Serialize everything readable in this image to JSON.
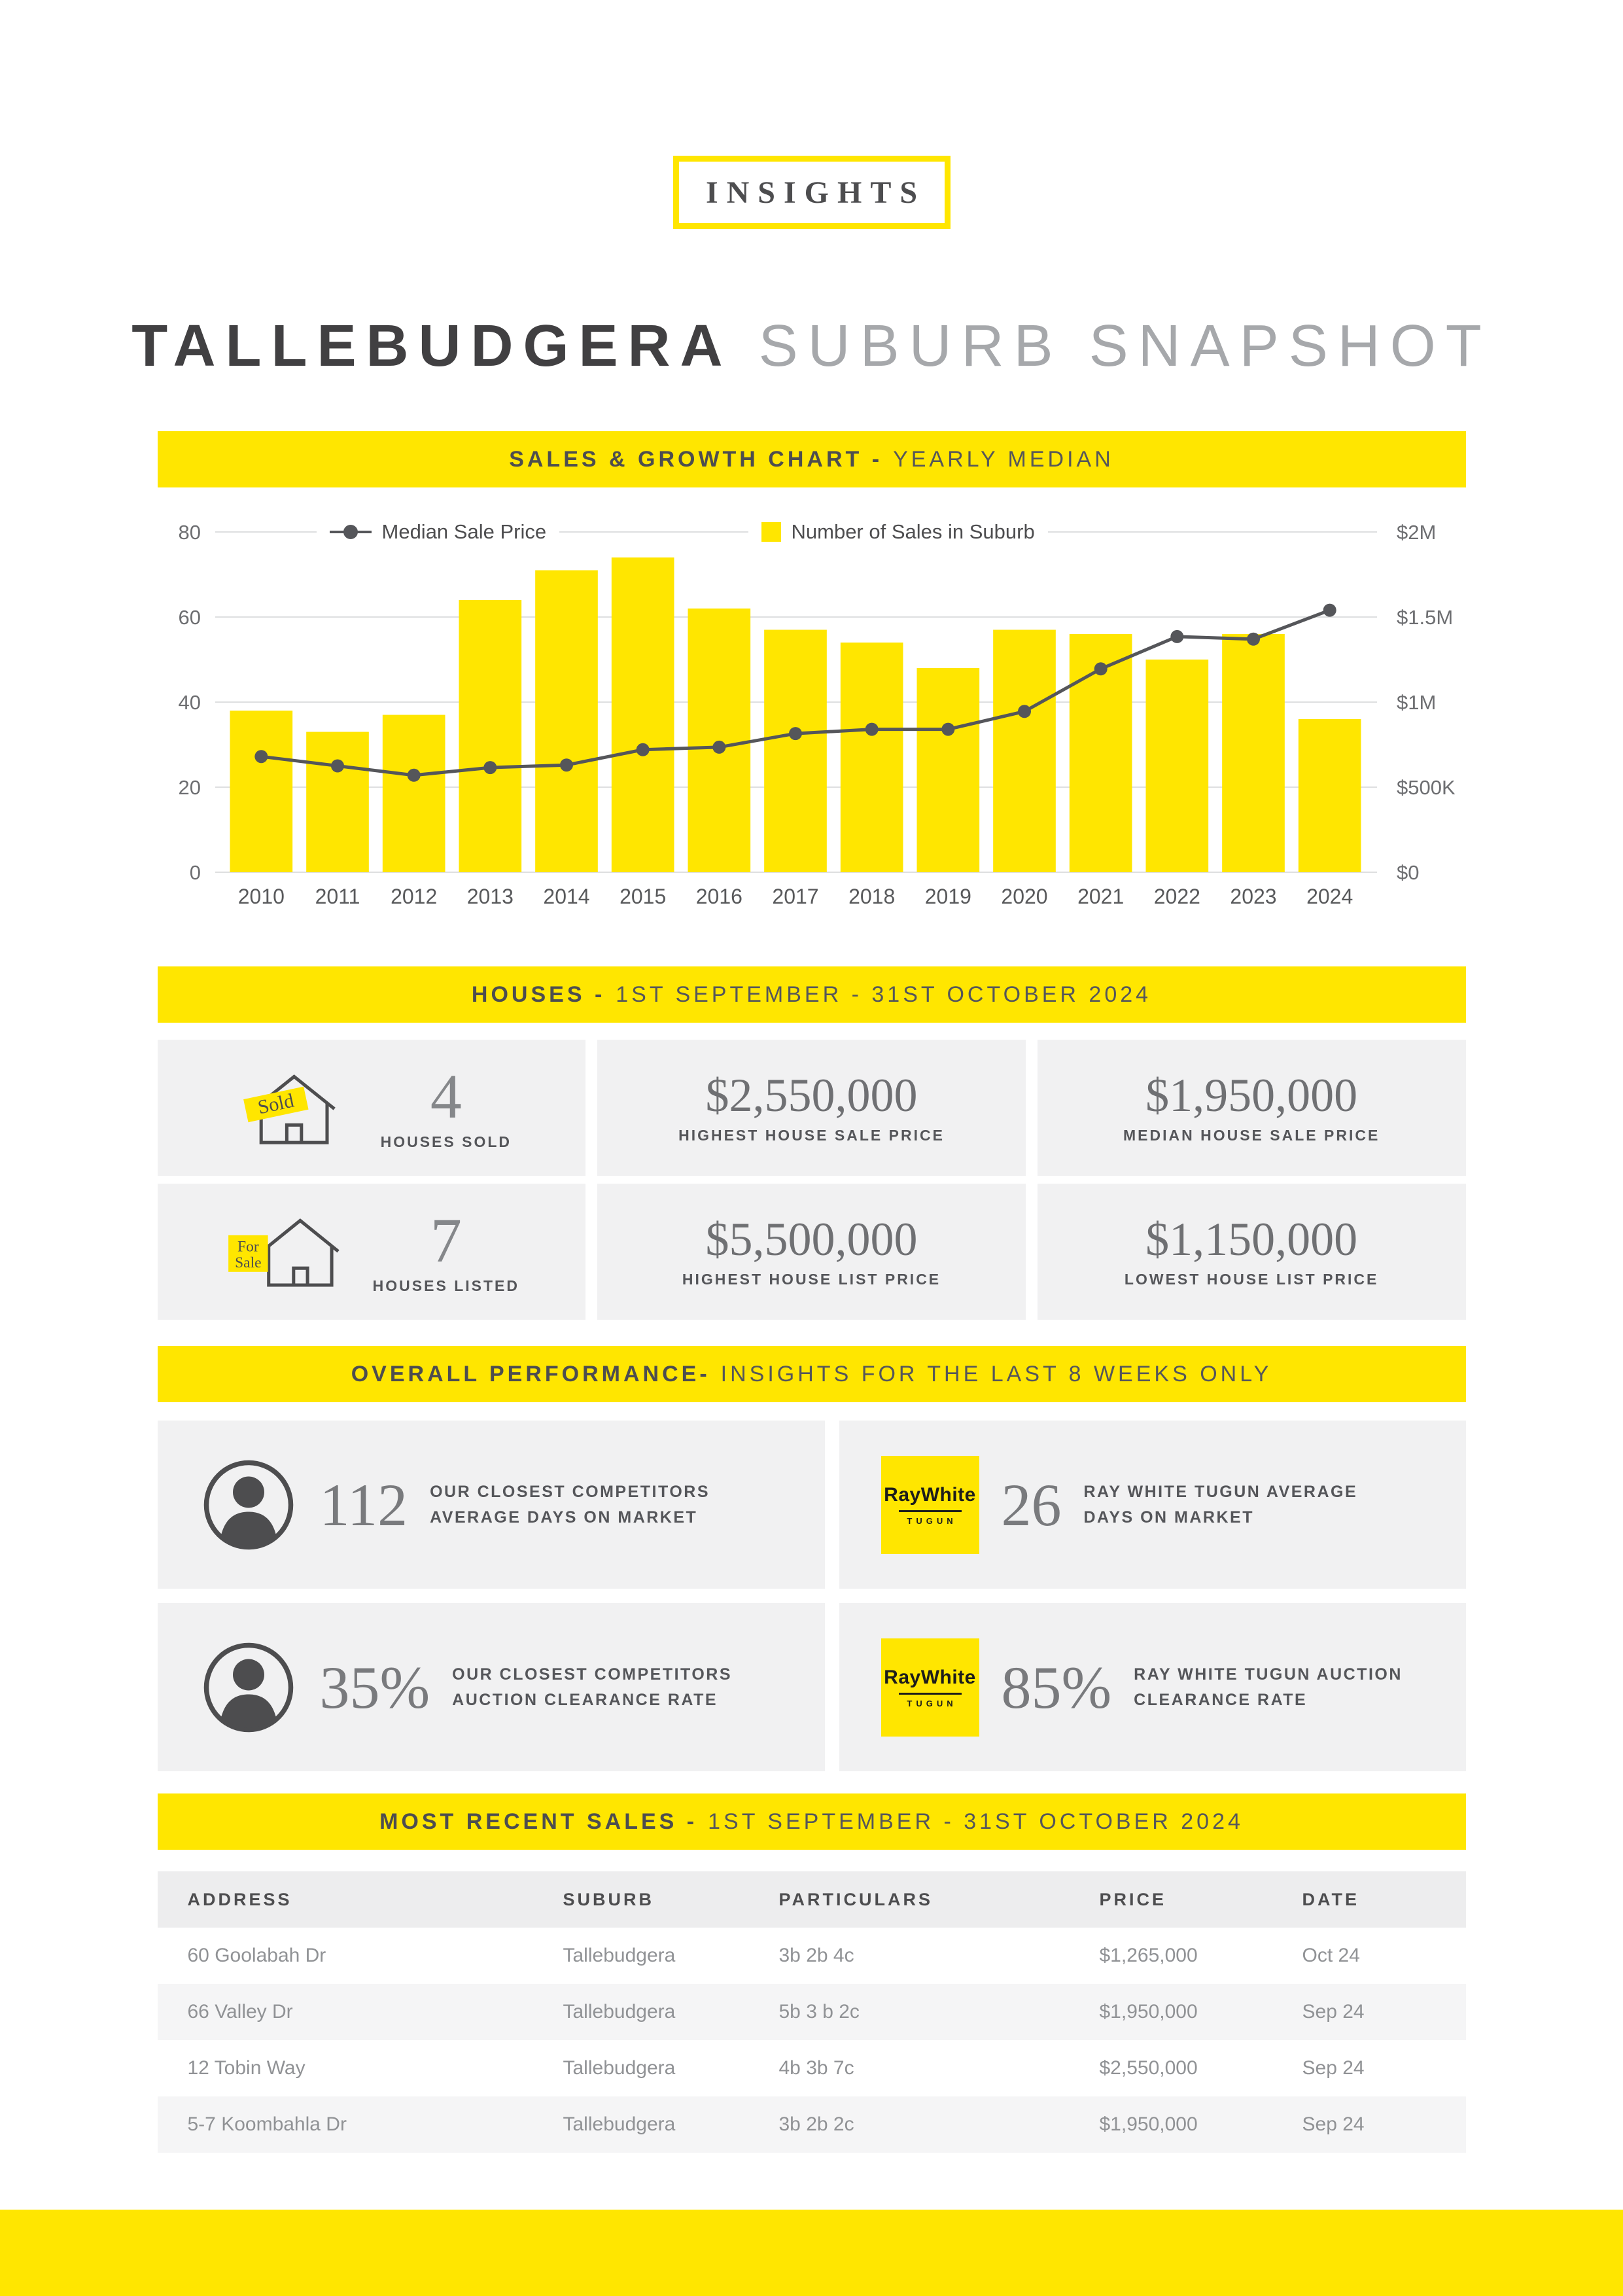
{
  "page": {
    "brand_label": "INSIGHTS",
    "title_bold": "TALLEBUDGERA",
    "title_light": "SUBURB SNAPSHOT"
  },
  "colors": {
    "brand_yellow": "#FFE600",
    "dark_text": "#4D4D4F",
    "light_box_gray": "#F1F1F2"
  },
  "banners": {
    "sales_growth": {
      "bold": "SALES & GROWTH CHART -",
      "light": "YEARLY MEDIAN"
    },
    "houses": {
      "bold": "HOUSES -",
      "light": "1ST SEPTEMBER - 31ST OCTOBER 2024"
    },
    "performance": {
      "bold": "OVERALL PERFORMANCE-",
      "light": "INSIGHTS FOR THE LAST 8 WEEKS ONLY"
    },
    "recent_sales": {
      "bold": "MOST RECENT SALES -",
      "light": "1ST SEPTEMBER - 31ST OCTOBER 2024"
    }
  },
  "chart_data": {
    "type": "bar+line",
    "title": "SALES & GROWTH CHART - YEARLY MEDIAN",
    "categories": [
      "2010",
      "2011",
      "2012",
      "2013",
      "2014",
      "2015",
      "2016",
      "2017",
      "2018",
      "2019",
      "2020",
      "2021",
      "2022",
      "2023",
      "2024"
    ],
    "series": [
      {
        "name": "Number of Sales in Suburb",
        "type": "bar",
        "axis": "left",
        "values": [
          38,
          33,
          37,
          64,
          71,
          74,
          62,
          57,
          54,
          48,
          57,
          56,
          50,
          56,
          36
        ]
      },
      {
        "name": "Median Sale Price",
        "type": "line",
        "axis": "right",
        "values": [
          680000,
          625000,
          570000,
          615000,
          630000,
          720000,
          735000,
          815000,
          840000,
          840000,
          945000,
          1195000,
          1385000,
          1370000,
          1540000
        ]
      }
    ],
    "left_axis": {
      "ticks": [
        0,
        20,
        40,
        60,
        80
      ],
      "max": 80
    },
    "right_axis": {
      "tick_labels": [
        "$0",
        "$500K",
        "$1M",
        "$1.5M",
        "$2M"
      ],
      "tick_values": [
        0,
        500000,
        1000000,
        1500000,
        2000000
      ],
      "max": 2000000
    },
    "legend": [
      {
        "label": "Median Sale Price",
        "marker": "line-dot"
      },
      {
        "label": "Number of Sales in Suburb",
        "marker": "yellow-square"
      }
    ],
    "grid": true,
    "legend_position": "top"
  },
  "tags": {
    "sold": "Sold",
    "for_sale_line1": "For",
    "for_sale_line2": "Sale"
  },
  "house_stats": [
    {
      "icon": "sold-house-icon",
      "value": "4",
      "label": "HOUSES SOLD"
    },
    {
      "value": "$2,550,000",
      "label": "HIGHEST HOUSE SALE PRICE"
    },
    {
      "value": "$1,950,000",
      "label": "MEDIAN HOUSE SALE PRICE"
    },
    {
      "icon": "for-sale-house-icon",
      "value": "7",
      "label": "HOUSES LISTED"
    },
    {
      "value": "$5,500,000",
      "label": "HIGHEST HOUSE LIST PRICE"
    },
    {
      "value": "$1,150,000",
      "label": "LOWEST HOUSE LIST PRICE"
    }
  ],
  "performance": [
    {
      "icon": "person-icon",
      "value": "112",
      "label_line1": "OUR CLOSEST COMPETITORS",
      "label_line2": "AVERAGE DAYS ON MARKET"
    },
    {
      "icon": "raywhite-logo-icon",
      "value": "26",
      "label_line1": "RAY WHITE TUGUN AVERAGE",
      "label_line2": "DAYS ON MARKET"
    },
    {
      "icon": "person-icon",
      "value": "35%",
      "label_line1": "OUR CLOSEST COMPETITORS",
      "label_line2": "AUCTION CLEARANCE RATE"
    },
    {
      "icon": "raywhite-logo-icon",
      "value": "85%",
      "label_line1": "RAY WHITE TUGUN AUCTION",
      "label_line2": "CLEARANCE RATE"
    }
  ],
  "raywhite": {
    "wordmark": "RayWhite",
    "sub": "TUGUN"
  },
  "recent_sales_table": {
    "headers": [
      "ADDRESS",
      "SUBURB",
      "PARTICULARS",
      "PRICE",
      "DATE"
    ],
    "rows": [
      [
        "60 Goolabah Dr",
        "Tallebudgera",
        "3b 2b 4c",
        "$1,265,000",
        "Oct 24"
      ],
      [
        "66 Valley Dr",
        "Tallebudgera",
        "5b 3 b 2c",
        "$1,950,000",
        "Sep 24"
      ],
      [
        "12 Tobin Way",
        "Tallebudgera",
        "4b 3b 7c",
        "$2,550,000",
        "Sep 24"
      ],
      [
        "5-7 Koombahla Dr",
        "Tallebudgera",
        "3b 2b 2c",
        "$1,950,000",
        "Sep 24"
      ]
    ]
  }
}
